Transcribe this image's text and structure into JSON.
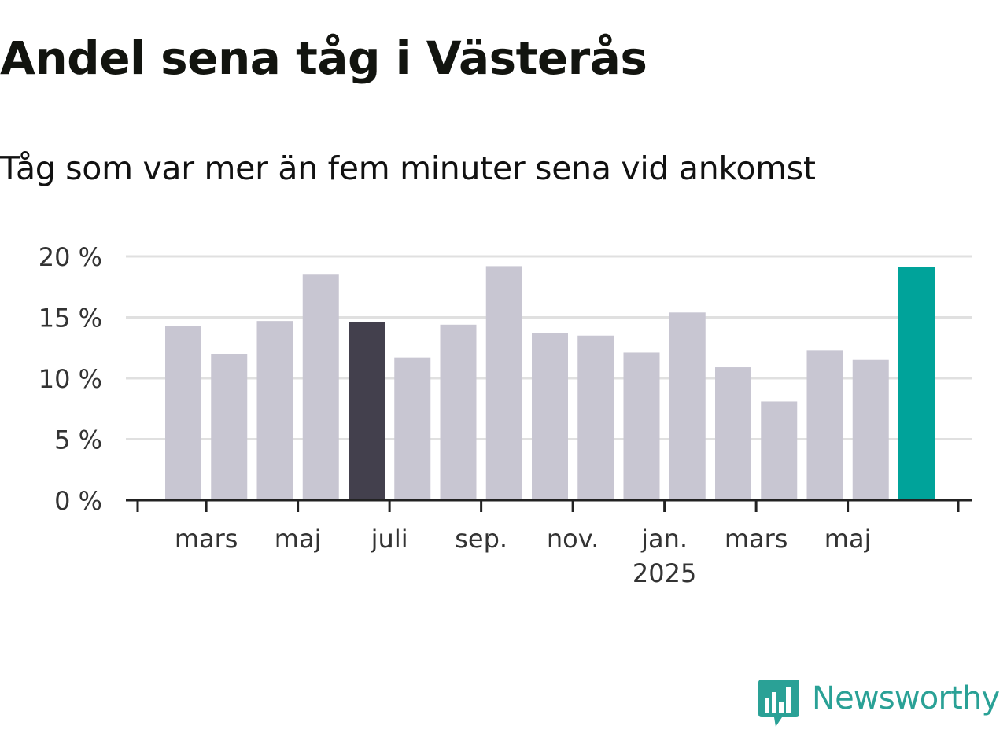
{
  "header": {
    "title": "Andel sena tåg i Västerås",
    "subtitle": "Tåg som var mer än fem minuter sena vid ankomst"
  },
  "logo": {
    "text": "Newsworthy",
    "icon": "bar-chart-speech-bubble-icon",
    "color": "#2aa196"
  },
  "colors": {
    "bar_default": "#c8c6d2",
    "bar_highlight_dark": "#43404d",
    "bar_highlight_latest": "#00a39a",
    "grid": "#e0e0e0",
    "axis": "#222222",
    "tick_label": "#333333"
  },
  "chart_data": {
    "type": "bar",
    "unit": "%",
    "ylim": [
      0,
      20
    ],
    "yticks": [
      0,
      5,
      10,
      15,
      20
    ],
    "ytick_labels": [
      "0 %",
      "5 %",
      "10 %",
      "15 %",
      "20 %"
    ],
    "grid": true,
    "categories": [
      "2024-02",
      "2024-03",
      "2024-04",
      "2024-05",
      "2024-06",
      "2024-07",
      "2024-08",
      "2024-09",
      "2024-10",
      "2024-11",
      "2024-12",
      "2025-01",
      "2025-02",
      "2025-03",
      "2025-04",
      "2025-05",
      "2025-06"
    ],
    "values": [
      14.3,
      12.0,
      14.7,
      18.5,
      14.6,
      11.7,
      14.4,
      19.2,
      13.7,
      13.5,
      12.1,
      15.4,
      10.9,
      8.1,
      12.3,
      11.5,
      19.1
    ],
    "highlight": {
      "dark": "2024-06",
      "latest": "2025-06"
    },
    "xtick_labels": [
      {
        "category": "2024-03",
        "label": "mars"
      },
      {
        "category": "2024-05",
        "label": "maj"
      },
      {
        "category": "2024-07",
        "label": "juli"
      },
      {
        "category": "2024-09",
        "label": "sep."
      },
      {
        "category": "2024-11",
        "label": "nov."
      },
      {
        "category": "2025-01",
        "label": "jan.",
        "sublabel": "2025"
      },
      {
        "category": "2025-03",
        "label": "mars"
      },
      {
        "category": "2025-05",
        "label": "maj"
      }
    ]
  }
}
